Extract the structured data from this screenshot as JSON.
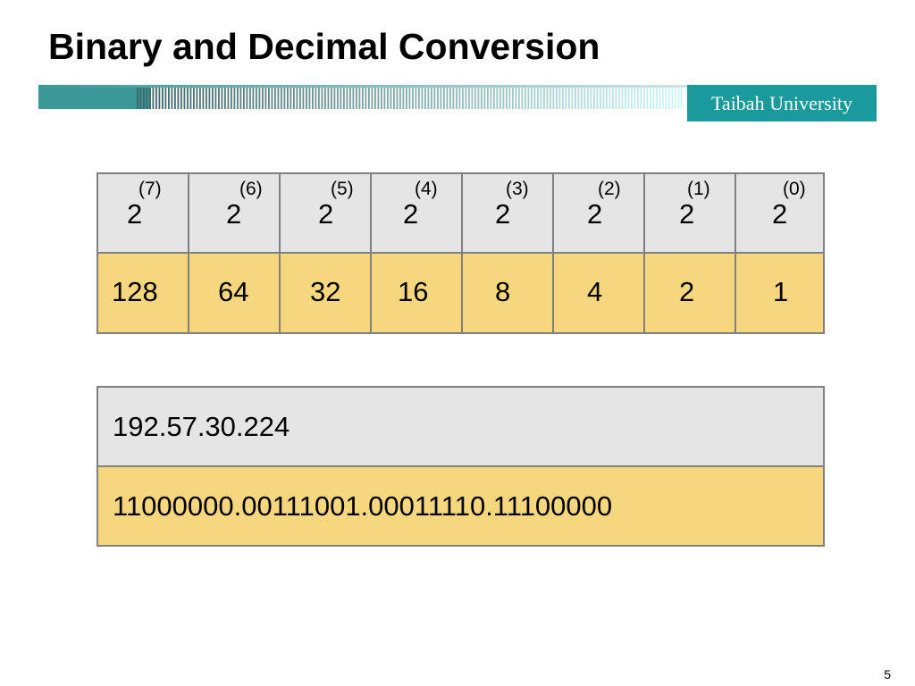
{
  "slide": {
    "title": "Binary and Decimal Conversion",
    "brand": "Taibah University",
    "page_number": "5"
  },
  "theme": {
    "banner_color": "#1a9a9a",
    "header_row_color": "#e5e5e5",
    "value_row_color": "#f7d77d",
    "border_color": "#808080"
  },
  "powers_table": {
    "columns": [
      {
        "base": "2",
        "exponent": "(7)",
        "value": "128"
      },
      {
        "base": "2",
        "exponent": "(6)",
        "value": "64"
      },
      {
        "base": "2",
        "exponent": "(5)",
        "value": "32"
      },
      {
        "base": "2",
        "exponent": "(4)",
        "value": "16"
      },
      {
        "base": "2",
        "exponent": "(3)",
        "value": "8"
      },
      {
        "base": "2",
        "exponent": "(2)",
        "value": "4"
      },
      {
        "base": "2",
        "exponent": "(1)",
        "value": "2"
      },
      {
        "base": "2",
        "exponent": "(0)",
        "value": "1"
      }
    ]
  },
  "address_table": {
    "decimal": "192.57.30.224",
    "binary": "11000000.00111001.00011110.11100000"
  }
}
